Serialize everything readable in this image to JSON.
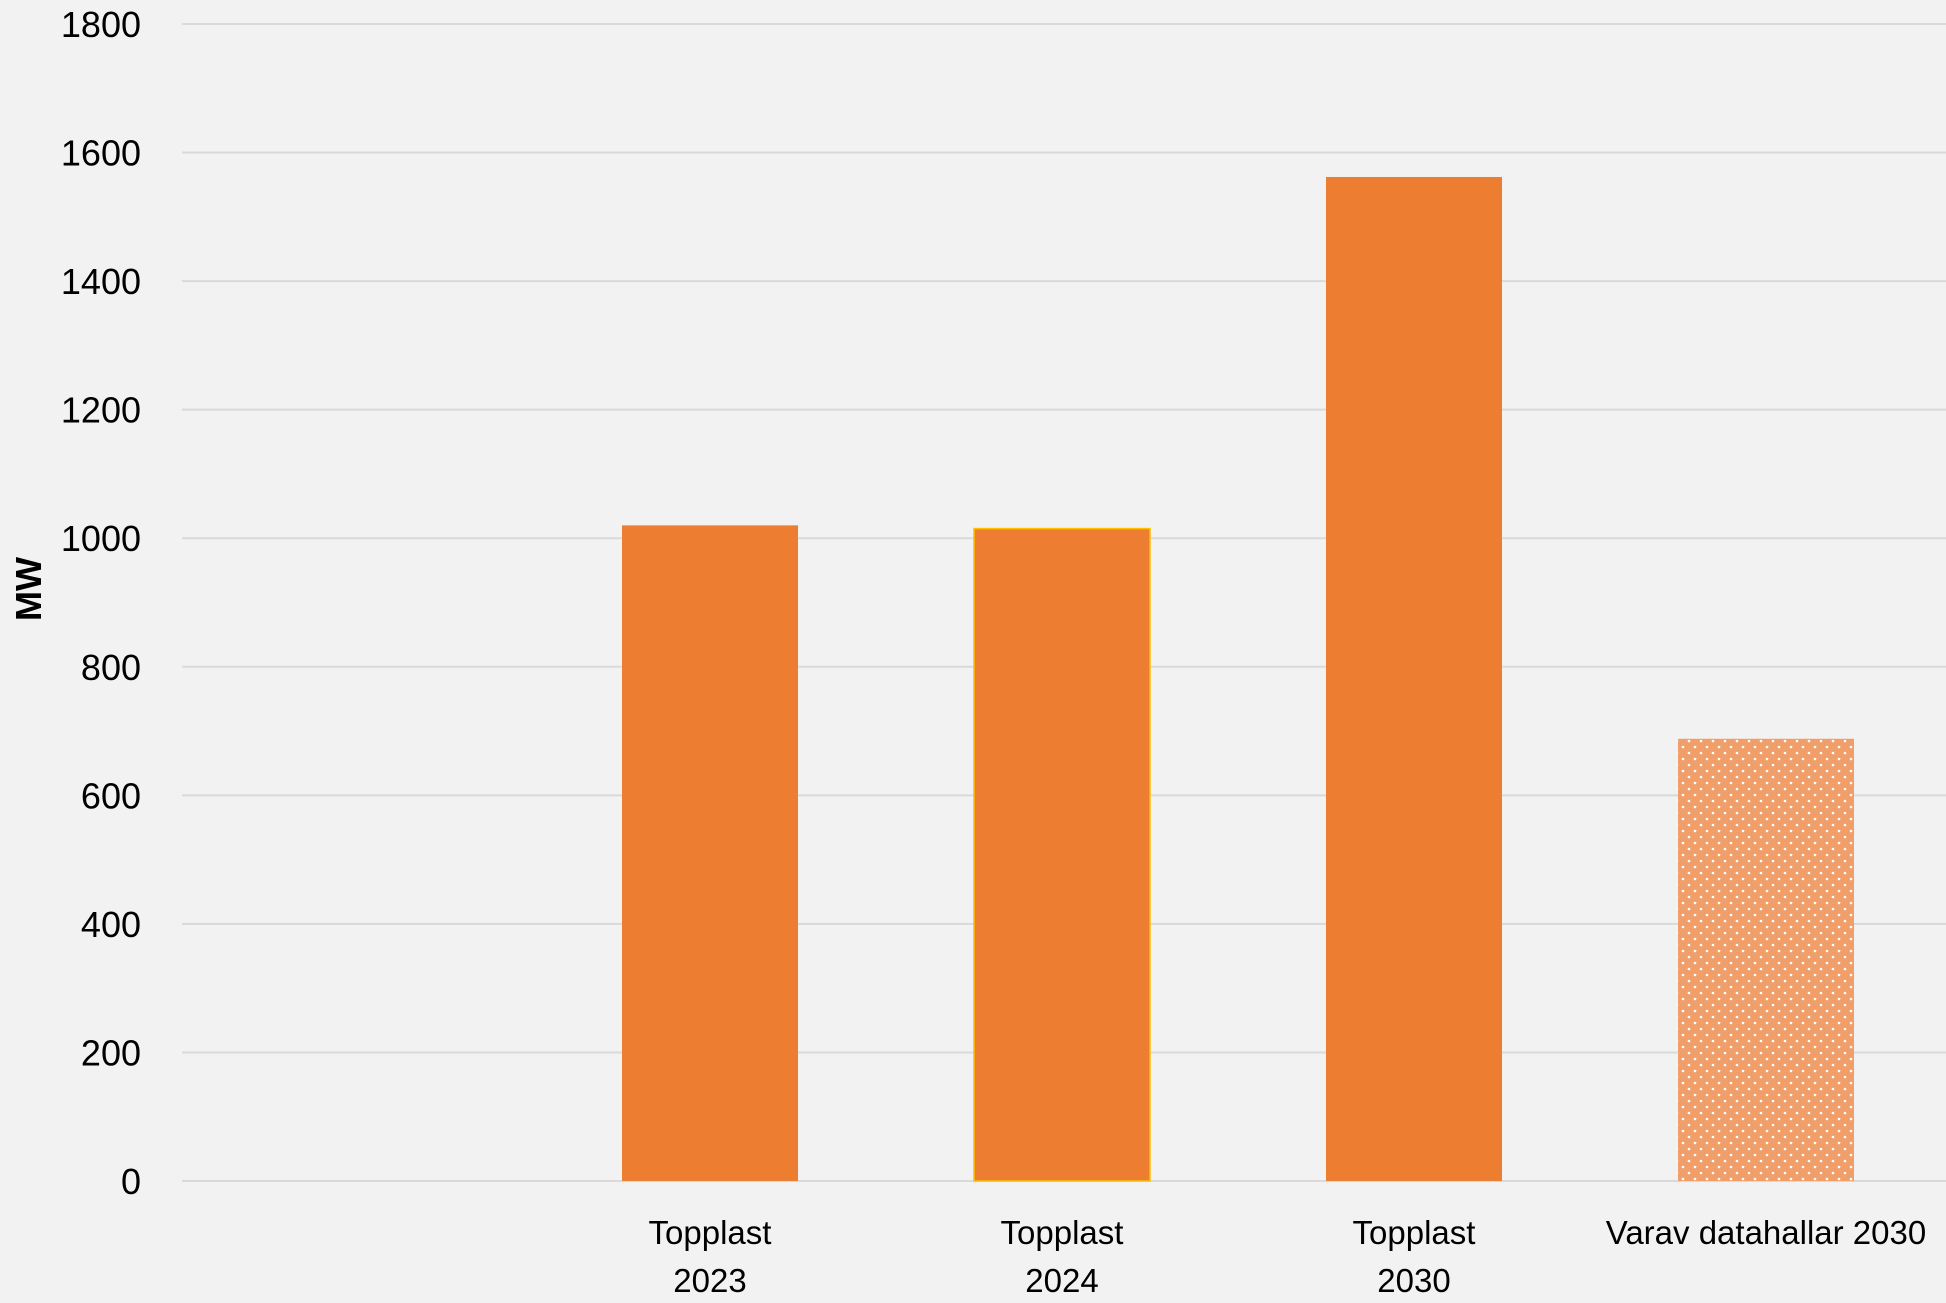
{
  "chart_data": {
    "type": "bar",
    "categories": [
      "",
      "Topplast 2023",
      "Topplast 2024",
      "Topplast 2030",
      "Varav datahallar 2030"
    ],
    "category_label_lines": [
      [],
      [
        "Topplast",
        "2023"
      ],
      [
        "Topplast",
        "2024"
      ],
      [
        "Topplast",
        "2030"
      ],
      [
        "Varav datahallar 2030"
      ]
    ],
    "values": [
      null,
      1020,
      1015,
      1562,
      688
    ],
    "bar_styles": [
      "none",
      "solid",
      "solid",
      "solid",
      "dotted"
    ],
    "ylabel": "MW",
    "ylim": [
      0,
      1800
    ],
    "yticks": [
      0,
      200,
      400,
      600,
      800,
      1000,
      1200,
      1400,
      1600,
      1800
    ],
    "grid": true,
    "colors": {
      "bar": "#ed7d31",
      "bar_light": "#f19f6a",
      "bar_dot": "#ffffff",
      "bar_edge_2024": "#ffc000",
      "grid": "#d9d9d9",
      "background": "#f2f2f2",
      "text": "#000000"
    }
  }
}
